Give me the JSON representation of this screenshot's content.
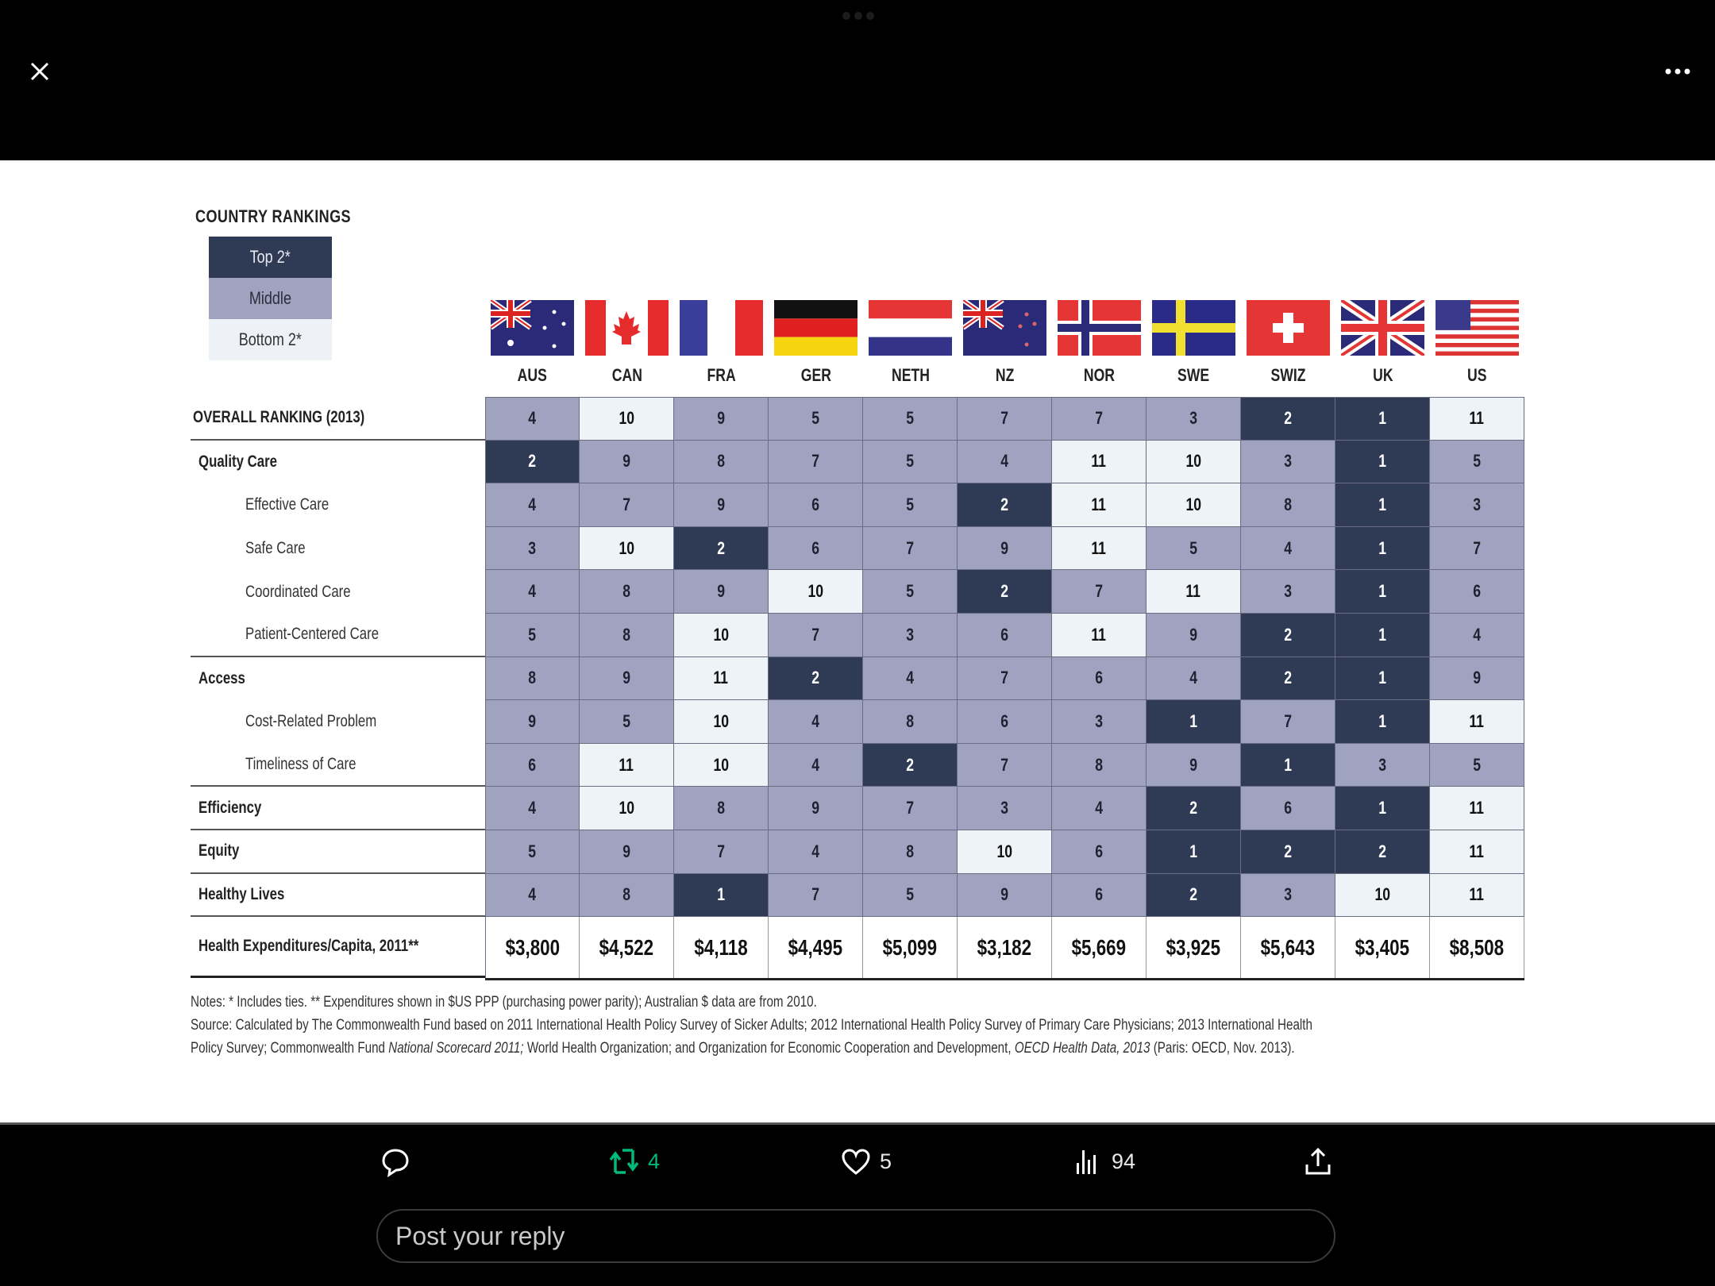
{
  "viewer": {
    "close_icon": "close-icon",
    "more_icon": "more-horizontal-icon"
  },
  "legend": {
    "title": "COUNTRY RANKINGS",
    "items": [
      {
        "label": "Top 2*",
        "color": "#2f3a55"
      },
      {
        "label": "Middle",
        "color": "#a0a3c0"
      },
      {
        "label": "Bottom 2*",
        "color": "#eef3f8"
      }
    ]
  },
  "countries": [
    "AUS",
    "CAN",
    "FRA",
    "GER",
    "NETH",
    "NZ",
    "NOR",
    "SWE",
    "SWIZ",
    "UK",
    "US"
  ],
  "rows": [
    {
      "label": "OVERALL RANKING (2013)",
      "type": "over",
      "values": [
        4,
        10,
        9,
        5,
        5,
        7,
        7,
        3,
        2,
        1,
        11
      ],
      "tiers": [
        "m",
        "b",
        "m",
        "m",
        "m",
        "m",
        "m",
        "m",
        "t",
        "t",
        "b"
      ]
    },
    {
      "label": "Quality Care",
      "type": "bold",
      "values": [
        2,
        9,
        8,
        7,
        5,
        4,
        11,
        10,
        3,
        1,
        5
      ],
      "tiers": [
        "t",
        "m",
        "m",
        "m",
        "m",
        "m",
        "b",
        "b",
        "m",
        "t",
        "m"
      ]
    },
    {
      "label": "Effective Care",
      "type": "sub",
      "values": [
        4,
        7,
        9,
        6,
        5,
        2,
        11,
        10,
        8,
        1,
        3
      ],
      "tiers": [
        "m",
        "m",
        "m",
        "m",
        "m",
        "t",
        "b",
        "b",
        "m",
        "t",
        "m"
      ]
    },
    {
      "label": "Safe Care",
      "type": "sub",
      "values": [
        3,
        10,
        2,
        6,
        7,
        9,
        11,
        5,
        4,
        1,
        7
      ],
      "tiers": [
        "m",
        "b",
        "t",
        "m",
        "m",
        "m",
        "b",
        "m",
        "m",
        "t",
        "m"
      ]
    },
    {
      "label": "Coordinated Care",
      "type": "sub",
      "values": [
        4,
        8,
        9,
        10,
        5,
        2,
        7,
        11,
        3,
        1,
        6
      ],
      "tiers": [
        "m",
        "m",
        "m",
        "b",
        "m",
        "t",
        "m",
        "b",
        "m",
        "t",
        "m"
      ]
    },
    {
      "label": "Patient-Centered Care",
      "type": "sub-sep",
      "values": [
        5,
        8,
        10,
        7,
        3,
        6,
        11,
        9,
        2,
        1,
        4
      ],
      "tiers": [
        "m",
        "m",
        "b",
        "m",
        "m",
        "m",
        "b",
        "m",
        "t",
        "t",
        "m"
      ]
    },
    {
      "label": "Access",
      "type": "bold",
      "values": [
        8,
        9,
        11,
        2,
        4,
        7,
        6,
        4,
        2,
        1,
        9
      ],
      "tiers": [
        "m",
        "m",
        "b",
        "t",
        "m",
        "m",
        "m",
        "m",
        "t",
        "t",
        "m"
      ]
    },
    {
      "label": "Cost-Related Problem",
      "type": "sub",
      "values": [
        9,
        5,
        10,
        4,
        8,
        6,
        3,
        1,
        7,
        1,
        11
      ],
      "tiers": [
        "m",
        "m",
        "b",
        "m",
        "m",
        "m",
        "m",
        "t",
        "m",
        "t",
        "b"
      ]
    },
    {
      "label": "Timeliness of Care",
      "type": "sub-sep",
      "values": [
        6,
        11,
        10,
        4,
        2,
        7,
        8,
        9,
        1,
        3,
        5
      ],
      "tiers": [
        "m",
        "b",
        "b",
        "m",
        "t",
        "m",
        "m",
        "m",
        "t",
        "m",
        "m"
      ]
    },
    {
      "label": "Efficiency",
      "type": "bold-sep",
      "values": [
        4,
        10,
        8,
        9,
        7,
        3,
        4,
        2,
        6,
        1,
        11
      ],
      "tiers": [
        "m",
        "b",
        "m",
        "m",
        "m",
        "m",
        "m",
        "t",
        "m",
        "t",
        "b"
      ]
    },
    {
      "label": "Equity",
      "type": "bold-sep",
      "values": [
        5,
        9,
        7,
        4,
        8,
        10,
        6,
        1,
        2,
        2,
        11
      ],
      "tiers": [
        "m",
        "m",
        "m",
        "m",
        "m",
        "b",
        "m",
        "t",
        "t",
        "t",
        "b"
      ]
    },
    {
      "label": "Healthy Lives",
      "type": "bold-sep",
      "values": [
        4,
        8,
        1,
        7,
        5,
        9,
        6,
        2,
        3,
        10,
        11
      ],
      "tiers": [
        "m",
        "m",
        "t",
        "m",
        "m",
        "m",
        "m",
        "t",
        "m",
        "b",
        "b"
      ]
    }
  ],
  "expenditures": {
    "label": "Health Expenditures/Capita, 2011**",
    "values": [
      "$3,800",
      "$4,522",
      "$4,118",
      "$4,495",
      "$5,099",
      "$3,182",
      "$5,669",
      "$3,925",
      "$5,643",
      "$3,405",
      "$8,508"
    ]
  },
  "notes": {
    "line1": "Notes: * Includes ties. ** Expenditures shown in $US PPP (purchasing power parity); Australian $ data are from 2010.",
    "line2": "Source: Calculated by The Commonwealth Fund based on 2011 International Health Policy Survey of Sicker Adults; 2012 International Health Policy Survey of Primary Care Physicians; 2013 International Health",
    "line3_a": "Policy Survey; Commonwealth Fund ",
    "line3_b": "National Scorecard 2011;",
    "line3_c": " World Health Organization; and Organization for Economic Cooperation and Development, ",
    "line3_d": "OECD Health Data, 2013",
    "line3_e": " (Paris: OECD, Nov. 2013)."
  },
  "actions": {
    "reply_count": "",
    "retweet_count": "4",
    "like_count": "5",
    "views_count": "94",
    "retweet_color": "#00ba7c"
  },
  "reply": {
    "placeholder": "Post your reply"
  },
  "chart_data": {
    "type": "table",
    "title": "COUNTRY RANKINGS",
    "columns": [
      "AUS",
      "CAN",
      "FRA",
      "GER",
      "NETH",
      "NZ",
      "NOR",
      "SWE",
      "SWIZ",
      "UK",
      "US"
    ],
    "legend": [
      "Top 2*",
      "Middle",
      "Bottom 2*"
    ]
  }
}
